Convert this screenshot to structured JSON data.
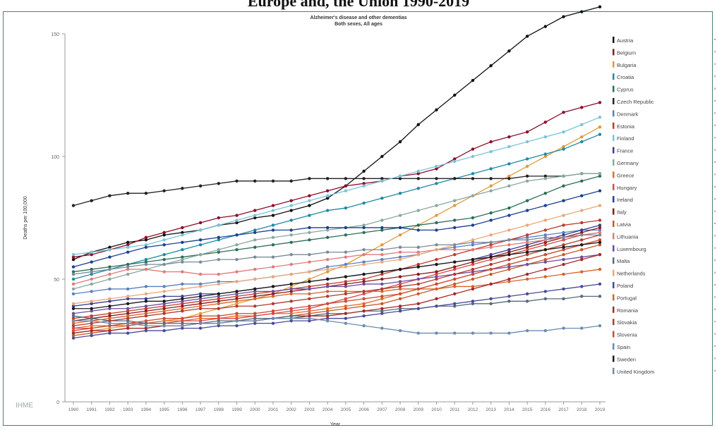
{
  "outer_title": "Europe and, the Union 1990-2019",
  "logo_text": "IHME",
  "chart_data": {
    "type": "line",
    "title": "Alzheimer's disease and other dementias",
    "subtitle": "Both sexes, All ages",
    "xlabel": "Year",
    "ylabel": "Deaths per 100,000",
    "x": [
      1990,
      1991,
      1992,
      1993,
      1994,
      1995,
      1996,
      1997,
      1998,
      1999,
      2000,
      2001,
      2002,
      2003,
      2004,
      2005,
      2006,
      2007,
      2008,
      2009,
      2010,
      2011,
      2012,
      2013,
      2014,
      2015,
      2016,
      2017,
      2018,
      2019
    ],
    "ylim": [
      0,
      150
    ],
    "yticks": [
      0,
      50,
      100,
      150
    ],
    "grid": false,
    "legend_position": "right",
    "series": [
      {
        "name": "Austria",
        "color": "#111111",
        "values": [
          58,
          61,
          63,
          65,
          66,
          68,
          69,
          70,
          72,
          73,
          75,
          76,
          78,
          80,
          83,
          88,
          94,
          100,
          106,
          113,
          119,
          125,
          131,
          137,
          143,
          149,
          153,
          157,
          159,
          161
        ]
      },
      {
        "name": "Belgium",
        "color": "#8b0d2a",
        "values": [
          59,
          60,
          62,
          64,
          67,
          69,
          71,
          73,
          75,
          76,
          78,
          80,
          82,
          84,
          86,
          88,
          89,
          90,
          92,
          93,
          95,
          99,
          103,
          106,
          108,
          110,
          114,
          118,
          120,
          122
        ]
      },
      {
        "name": "Bulgaria",
        "color": "#e09a3a",
        "values": [
          28,
          29,
          30,
          31,
          32,
          33,
          34,
          36,
          38,
          40,
          42,
          44,
          47,
          50,
          53,
          56,
          60,
          64,
          68,
          72,
          76,
          80,
          84,
          88,
          92,
          96,
          100,
          104,
          108,
          112
        ]
      },
      {
        "name": "Croatia",
        "color": "#1f8aa3",
        "values": [
          50,
          52,
          54,
          56,
          58,
          60,
          62,
          64,
          66,
          68,
          70,
          72,
          74,
          76,
          78,
          79,
          81,
          83,
          85,
          87,
          89,
          91,
          93,
          95,
          97,
          99,
          101,
          103,
          106,
          109
        ]
      },
      {
        "name": "Cyprus",
        "color": "#2a6f55",
        "values": [
          53,
          54,
          55,
          56,
          57,
          58,
          59,
          60,
          61,
          62,
          63,
          64,
          65,
          66,
          67,
          68,
          69,
          70,
          71,
          72,
          73,
          74,
          75,
          77,
          79,
          82,
          85,
          88,
          90,
          92
        ]
      },
      {
        "name": "Czech Republic",
        "color": "#222222",
        "values": [
          80,
          82,
          84,
          85,
          85,
          86,
          87,
          88,
          89,
          90,
          90,
          90,
          90,
          91,
          91,
          91,
          91,
          91,
          91,
          91,
          91,
          91,
          91,
          91,
          91,
          92,
          92,
          92,
          93,
          93
        ]
      },
      {
        "name": "Denmark",
        "color": "#5a7fbf",
        "values": [
          44,
          45,
          46,
          46,
          47,
          47,
          48,
          48,
          49,
          49,
          50,
          51,
          52,
          53,
          55,
          56,
          57,
          58,
          59,
          60,
          62,
          63,
          64,
          65,
          66,
          67,
          68,
          69,
          70,
          70
        ]
      },
      {
        "name": "Estonia",
        "color": "#c0392b",
        "values": [
          34,
          35,
          36,
          37,
          38,
          39,
          40,
          41,
          42,
          43,
          44,
          45,
          46,
          47,
          48,
          49,
          50,
          52,
          54,
          56,
          58,
          60,
          62,
          64,
          66,
          68,
          70,
          72,
          73,
          74
        ]
      },
      {
        "name": "Finland",
        "color": "#7ac4d9",
        "values": [
          60,
          61,
          62,
          63,
          64,
          66,
          68,
          70,
          72,
          74,
          76,
          78,
          80,
          82,
          84,
          86,
          88,
          90,
          92,
          94,
          96,
          98,
          100,
          102,
          104,
          106,
          108,
          110,
          113,
          116
        ]
      },
      {
        "name": "France",
        "color": "#3b3b8f",
        "values": [
          39,
          40,
          41,
          42,
          42,
          43,
          43,
          44,
          44,
          45,
          46,
          47,
          48,
          49,
          50,
          51,
          52,
          53,
          54,
          55,
          56,
          57,
          58,
          60,
          62,
          64,
          66,
          68,
          70,
          72
        ]
      },
      {
        "name": "Germany",
        "color": "#8aa8a0",
        "values": [
          46,
          48,
          50,
          52,
          54,
          56,
          58,
          60,
          62,
          64,
          66,
          67,
          68,
          69,
          70,
          71,
          72,
          74,
          76,
          78,
          80,
          82,
          84,
          86,
          88,
          90,
          91,
          92,
          93,
          93
        ]
      },
      {
        "name": "Greece",
        "color": "#e46a2c",
        "values": [
          30,
          31,
          31,
          32,
          32,
          33,
          33,
          34,
          34,
          35,
          35,
          36,
          36,
          37,
          38,
          39,
          40,
          42,
          44,
          46,
          48,
          50,
          52,
          54,
          56,
          58,
          60,
          62,
          64,
          66
        ]
      },
      {
        "name": "Hungary",
        "color": "#d94848",
        "values": [
          30,
          30,
          31,
          31,
          32,
          32,
          33,
          33,
          34,
          34,
          35,
          36,
          37,
          38,
          40,
          42,
          44,
          46,
          48,
          50,
          52,
          54,
          56,
          58,
          60,
          62,
          64,
          66,
          68,
          69
        ]
      },
      {
        "name": "Ireland",
        "color": "#1c3f8f",
        "values": [
          55,
          57,
          59,
          61,
          63,
          64,
          65,
          66,
          67,
          68,
          69,
          70,
          70,
          71,
          71,
          71,
          71,
          71,
          71,
          70,
          70,
          71,
          72,
          74,
          76,
          78,
          80,
          82,
          84,
          86
        ]
      },
      {
        "name": "Italy",
        "color": "#8b1a1a",
        "values": [
          33,
          34,
          35,
          36,
          37,
          38,
          39,
          40,
          41,
          42,
          43,
          44,
          45,
          46,
          47,
          48,
          49,
          50,
          51,
          52,
          53,
          55,
          57,
          59,
          61,
          63,
          65,
          67,
          69,
          71
        ]
      },
      {
        "name": "Latvia",
        "color": "#c45a2a",
        "values": [
          27,
          28,
          29,
          30,
          30,
          31,
          31,
          32,
          32,
          33,
          33,
          34,
          35,
          36,
          37,
          38,
          39,
          40,
          42,
          44,
          46,
          48,
          50,
          52,
          54,
          56,
          58,
          60,
          62,
          64
        ]
      },
      {
        "name": "Lithuania",
        "color": "#e07b7b",
        "values": [
          48,
          50,
          52,
          54,
          54,
          53,
          53,
          52,
          52,
          53,
          54,
          55,
          56,
          57,
          58,
          59,
          60,
          60,
          61,
          61,
          62,
          62,
          62,
          63,
          64,
          65,
          66,
          67,
          68,
          69
        ]
      },
      {
        "name": "Luxembourg",
        "color": "#6d4c9f",
        "values": [
          36,
          37,
          38,
          38,
          39,
          40,
          41,
          42,
          43,
          44,
          45,
          45,
          46,
          46,
          47,
          47,
          48,
          48,
          49,
          50,
          51,
          52,
          53,
          54,
          55,
          56,
          57,
          58,
          59,
          60
        ]
      },
      {
        "name": "Malta",
        "color": "#556b7a",
        "values": [
          35,
          34,
          33,
          33,
          32,
          32,
          32,
          32,
          33,
          33,
          34,
          34,
          35,
          35,
          36,
          36,
          37,
          37,
          38,
          38,
          39,
          39,
          40,
          40,
          41,
          41,
          42,
          42,
          43,
          43
        ]
      },
      {
        "name": "Netherlands",
        "color": "#e8a87c",
        "values": [
          40,
          41,
          42,
          43,
          44,
          45,
          46,
          47,
          48,
          49,
          50,
          51,
          52,
          53,
          54,
          55,
          56,
          57,
          58,
          60,
          62,
          64,
          66,
          68,
          70,
          72,
          74,
          76,
          78,
          80
        ]
      },
      {
        "name": "Poland",
        "color": "#4a4a9a",
        "values": [
          26,
          27,
          28,
          28,
          29,
          29,
          30,
          30,
          31,
          31,
          32,
          32,
          33,
          33,
          34,
          34,
          35,
          36,
          37,
          38,
          39,
          40,
          41,
          42,
          43,
          44,
          45,
          46,
          47,
          48
        ]
      },
      {
        "name": "Portugal",
        "color": "#d9622b",
        "values": [
          32,
          33,
          34,
          35,
          36,
          37,
          38,
          39,
          40,
          41,
          42,
          43,
          44,
          44,
          45,
          45,
          45,
          45,
          46,
          46,
          46,
          47,
          47,
          48,
          49,
          50,
          51,
          52,
          53,
          54
        ]
      },
      {
        "name": "Romania",
        "color": "#a52a2a",
        "values": [
          28,
          29,
          29,
          30,
          30,
          31,
          31,
          32,
          32,
          33,
          33,
          34,
          34,
          35,
          35,
          36,
          37,
          38,
          39,
          40,
          42,
          44,
          46,
          48,
          50,
          52,
          54,
          56,
          58,
          60
        ]
      },
      {
        "name": "Slovakia",
        "color": "#b03a2e",
        "values": [
          31,
          32,
          33,
          34,
          35,
          36,
          37,
          38,
          38,
          39,
          39,
          40,
          41,
          42,
          43,
          44,
          45,
          46,
          47,
          48,
          50,
          52,
          54,
          56,
          58,
          60,
          62,
          64,
          66,
          68
        ]
      },
      {
        "name": "Slovenia",
        "color": "#cc4b37",
        "values": [
          29,
          30,
          31,
          32,
          33,
          34,
          34,
          35,
          35,
          36,
          36,
          37,
          38,
          39,
          40,
          41,
          42,
          43,
          44,
          46,
          48,
          50,
          52,
          54,
          56,
          58,
          60,
          62,
          64,
          66
        ]
      },
      {
        "name": "Spain",
        "color": "#6a8caf",
        "values": [
          33,
          33,
          32,
          32,
          31,
          31,
          31,
          32,
          32,
          33,
          33,
          34,
          34,
          34,
          33,
          32,
          31,
          30,
          29,
          28,
          28,
          28,
          28,
          28,
          28,
          29,
          29,
          30,
          30,
          31
        ]
      },
      {
        "name": "Sweden",
        "color": "#1a1a1a",
        "values": [
          38,
          38,
          39,
          40,
          41,
          41,
          42,
          43,
          44,
          45,
          46,
          47,
          48,
          49,
          50,
          51,
          52,
          53,
          54,
          55,
          56,
          57,
          58,
          59,
          60,
          61,
          62,
          63,
          64,
          65
        ]
      },
      {
        "name": "United Kingdom",
        "color": "#7a8a99",
        "values": [
          52,
          53,
          54,
          55,
          56,
          56,
          57,
          57,
          58,
          58,
          59,
          59,
          60,
          60,
          61,
          61,
          62,
          62,
          63,
          63,
          64,
          64,
          65,
          65,
          66,
          66,
          67,
          67,
          68,
          68
        ]
      }
    ]
  }
}
